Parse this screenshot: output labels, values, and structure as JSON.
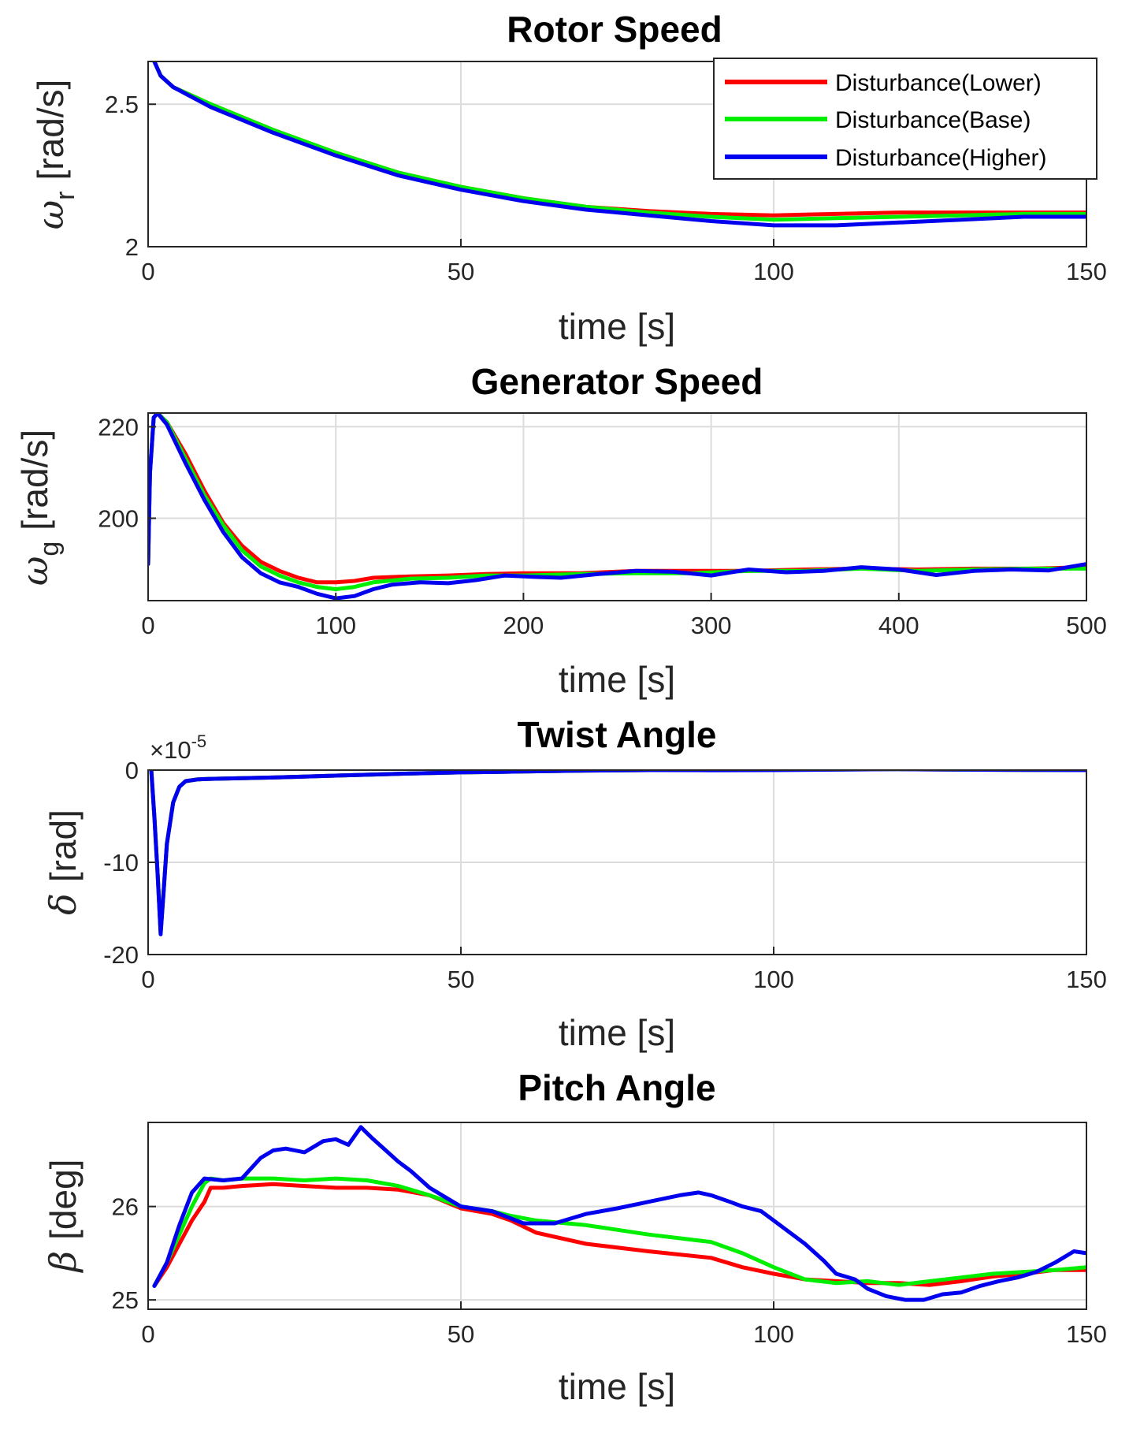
{
  "colors": {
    "lower": "#ff0000",
    "base": "#00ee00",
    "higher": "#0000ee"
  },
  "legend": [
    {
      "key": "lower",
      "label": "Disturbance(Lower)"
    },
    {
      "key": "base",
      "label": "Disturbance(Base)"
    },
    {
      "key": "higher",
      "label": "Disturbance(Higher)"
    }
  ],
  "chart_data": [
    {
      "type": "line",
      "title": "Rotor Speed",
      "xlabel": "time [s]",
      "ylabel": {
        "symbol": "ω",
        "sub": "r",
        "unit": "[rad/s]"
      },
      "xlim": [
        0,
        150
      ],
      "ylim": [
        2,
        2.65
      ],
      "xticks": [
        0,
        50,
        100,
        150
      ],
      "yticks": [
        2,
        2.5
      ],
      "xtick_labels": [
        "0",
        "50",
        "100",
        "150"
      ],
      "ytick_labels": [
        "2",
        "2.5"
      ],
      "series": [
        {
          "name": "Disturbance(Lower)",
          "key": "lower",
          "x": [
            1,
            2,
            4,
            10,
            20,
            30,
            40,
            50,
            60,
            70,
            80,
            90,
            100,
            110,
            120,
            130,
            140,
            150
          ],
          "y": [
            2.65,
            2.6,
            2.56,
            2.5,
            2.41,
            2.33,
            2.26,
            2.21,
            2.17,
            2.14,
            2.125,
            2.115,
            2.11,
            2.115,
            2.12,
            2.12,
            2.12,
            2.12
          ]
        },
        {
          "name": "Disturbance(Base)",
          "key": "base",
          "x": [
            1,
            2,
            4,
            10,
            20,
            30,
            40,
            50,
            60,
            70,
            80,
            90,
            100,
            110,
            120,
            130,
            140,
            150
          ],
          "y": [
            2.65,
            2.6,
            2.56,
            2.5,
            2.41,
            2.33,
            2.26,
            2.21,
            2.17,
            2.14,
            2.12,
            2.105,
            2.095,
            2.1,
            2.105,
            2.11,
            2.115,
            2.115
          ]
        },
        {
          "name": "Disturbance(Higher)",
          "key": "higher",
          "x": [
            1,
            2,
            4,
            10,
            20,
            30,
            40,
            50,
            60,
            70,
            80,
            90,
            100,
            110,
            120,
            130,
            140,
            150
          ],
          "y": [
            2.65,
            2.6,
            2.56,
            2.49,
            2.4,
            2.32,
            2.25,
            2.2,
            2.16,
            2.13,
            2.11,
            2.09,
            2.075,
            2.075,
            2.085,
            2.095,
            2.105,
            2.105
          ]
        }
      ],
      "legend_position": "top-right"
    },
    {
      "type": "line",
      "title": "Generator Speed",
      "xlabel": "time [s]",
      "ylabel": {
        "symbol": "ω",
        "sub": "g",
        "unit": "[rad/s]"
      },
      "xlim": [
        0,
        500
      ],
      "ylim": [
        182,
        223
      ],
      "xticks": [
        0,
        100,
        200,
        300,
        400,
        500
      ],
      "yticks": [
        200,
        220
      ],
      "xtick_labels": [
        "0",
        "100",
        "200",
        "300",
        "400",
        "500"
      ],
      "ytick_labels": [
        "200",
        "220"
      ],
      "series": [
        {
          "name": "Disturbance(Lower)",
          "key": "lower",
          "x": [
            0,
            1,
            3,
            5,
            10,
            20,
            30,
            40,
            50,
            60,
            70,
            80,
            90,
            100,
            110,
            120,
            140,
            160,
            180,
            200,
            230,
            260,
            290,
            320,
            350,
            380,
            410,
            440,
            470,
            500
          ],
          "y": [
            190,
            210,
            222,
            223,
            221,
            214,
            206,
            199,
            194,
            190.5,
            188.5,
            187,
            186,
            186,
            186.3,
            187,
            187.3,
            187.5,
            187.8,
            188,
            188,
            188.5,
            188.5,
            188.5,
            188.8,
            189,
            188.8,
            189,
            189,
            189.3
          ]
        },
        {
          "name": "Disturbance(Base)",
          "key": "base",
          "x": [
            0,
            1,
            3,
            5,
            10,
            20,
            30,
            40,
            50,
            60,
            70,
            80,
            90,
            100,
            110,
            120,
            140,
            160,
            180,
            200,
            230,
            260,
            290,
            320,
            350,
            380,
            410,
            440,
            470,
            500
          ],
          "y": [
            190,
            210,
            222,
            223,
            221,
            213,
            205,
            198.5,
            193,
            189.5,
            187.5,
            186,
            185,
            184.5,
            185,
            186,
            186.8,
            187,
            187.5,
            187.5,
            187.8,
            188,
            188,
            188.5,
            188.5,
            189,
            188.5,
            188.8,
            189,
            189
          ]
        },
        {
          "name": "Disturbance(Higher)",
          "key": "higher",
          "x": [
            0,
            1,
            3,
            5,
            10,
            20,
            30,
            40,
            50,
            60,
            70,
            80,
            90,
            100,
            110,
            120,
            130,
            145,
            160,
            175,
            190,
            205,
            220,
            240,
            260,
            280,
            300,
            320,
            340,
            360,
            380,
            400,
            420,
            440,
            460,
            480,
            500
          ],
          "y": [
            190,
            210,
            222,
            223,
            220.5,
            212,
            204,
            197,
            191.5,
            188,
            186,
            185,
            183.5,
            182.5,
            183,
            184.5,
            185.5,
            186,
            185.8,
            186.5,
            187.5,
            187.2,
            187,
            187.8,
            188.5,
            188.3,
            187.5,
            188.8,
            188.2,
            188.5,
            189.3,
            188.8,
            187.6,
            188.5,
            188.8,
            188.6,
            190
          ]
        }
      ]
    },
    {
      "type": "line",
      "title": "Twist Angle",
      "xlabel": "time [s]",
      "ylabel": {
        "symbol": "δ",
        "sub": "",
        "unit": "[rad]"
      },
      "exponent": "×10",
      "exponent_power": "-5",
      "xlim": [
        0,
        150
      ],
      "ylim": [
        -20,
        0
      ],
      "xticks": [
        0,
        50,
        100,
        150
      ],
      "yticks": [
        -20,
        -10,
        0
      ],
      "xtick_labels": [
        "0",
        "50",
        "100",
        "150"
      ],
      "ytick_labels": [
        "-20",
        "-10",
        "0"
      ],
      "series": [
        {
          "name": "Disturbance(Lower)",
          "key": "lower",
          "x": [
            0.5,
            1,
            1.5,
            2,
            2.5,
            3,
            4,
            5,
            6,
            8,
            10,
            20,
            30,
            40,
            50,
            60,
            70,
            80,
            90,
            100,
            110,
            120,
            130,
            140,
            150
          ],
          "y": [
            0,
            -5,
            -11,
            -17.5,
            -13,
            -8,
            -3.5,
            -1.8,
            -1.2,
            -1,
            -0.95,
            -0.8,
            -0.6,
            -0.4,
            -0.25,
            -0.15,
            -0.05,
            0,
            0.05,
            0.05,
            0.08,
            0.1,
            0.05,
            0.02,
            0
          ]
        },
        {
          "name": "Disturbance(Base)",
          "key": "base",
          "x": [
            0.5,
            1,
            1.5,
            2,
            2.5,
            3,
            4,
            5,
            6,
            8,
            10,
            20,
            30,
            40,
            50,
            60,
            70,
            80,
            90,
            100,
            110,
            120,
            130,
            140,
            150
          ],
          "y": [
            0,
            -5,
            -11,
            -17.6,
            -13,
            -8,
            -3.5,
            -1.8,
            -1.2,
            -1,
            -0.95,
            -0.8,
            -0.6,
            -0.4,
            -0.25,
            -0.15,
            -0.05,
            0,
            0.03,
            0.05,
            0.07,
            0.1,
            0.05,
            0.02,
            0
          ]
        },
        {
          "name": "Disturbance(Higher)",
          "key": "higher",
          "x": [
            0.5,
            1,
            1.5,
            2,
            2.5,
            3,
            4,
            5,
            6,
            8,
            10,
            20,
            30,
            40,
            50,
            60,
            70,
            80,
            90,
            100,
            110,
            120,
            130,
            140,
            150
          ],
          "y": [
            0,
            -5,
            -11,
            -17.8,
            -13,
            -8,
            -3.5,
            -1.8,
            -1.2,
            -1,
            -0.95,
            -0.8,
            -0.6,
            -0.4,
            -0.25,
            -0.15,
            -0.05,
            0,
            -0.02,
            0,
            0.05,
            0.1,
            0.05,
            0.02,
            0
          ]
        }
      ]
    },
    {
      "type": "line",
      "title": "Pitch Angle",
      "xlabel": "time [s]",
      "ylabel": {
        "symbol": "β",
        "sub": "",
        "unit": "[deg]"
      },
      "xlim": [
        0,
        150
      ],
      "ylim": [
        24.9,
        26.9
      ],
      "xticks": [
        0,
        50,
        100,
        150
      ],
      "yticks": [
        25,
        26
      ],
      "xtick_labels": [
        "0",
        "50",
        "100",
        "150"
      ],
      "ytick_labels": [
        "25",
        "26"
      ],
      "series": [
        {
          "name": "Disturbance(Lower)",
          "key": "lower",
          "x": [
            1,
            3,
            5,
            7,
            9,
            10,
            12,
            15,
            20,
            25,
            30,
            35,
            40,
            45,
            50,
            55,
            58,
            62,
            70,
            80,
            90,
            95,
            100,
            105,
            110,
            115,
            120,
            125,
            130,
            135,
            140,
            145,
            150
          ],
          "y": [
            25.15,
            25.35,
            25.6,
            25.85,
            26.05,
            26.2,
            26.2,
            26.22,
            26.24,
            26.22,
            26.2,
            26.2,
            26.18,
            26.12,
            25.98,
            25.92,
            25.85,
            25.72,
            25.6,
            25.52,
            25.45,
            25.35,
            25.28,
            25.22,
            25.2,
            25.18,
            25.18,
            25.16,
            25.2,
            25.25,
            25.28,
            25.32,
            25.32
          ]
        },
        {
          "name": "Disturbance(Base)",
          "key": "base",
          "x": [
            1,
            3,
            5,
            7,
            9,
            10,
            12,
            15,
            20,
            25,
            30,
            35,
            40,
            45,
            50,
            55,
            58,
            62,
            70,
            80,
            90,
            95,
            100,
            105,
            110,
            115,
            120,
            125,
            130,
            135,
            140,
            145,
            150
          ],
          "y": [
            25.15,
            25.4,
            25.7,
            26.0,
            26.25,
            26.3,
            26.28,
            26.3,
            26.3,
            26.28,
            26.3,
            26.28,
            26.22,
            26.12,
            26.0,
            25.95,
            25.9,
            25.85,
            25.8,
            25.7,
            25.62,
            25.5,
            25.35,
            25.22,
            25.18,
            25.2,
            25.16,
            25.2,
            25.24,
            25.28,
            25.3,
            25.32,
            25.35
          ]
        },
        {
          "name": "Disturbance(Higher)",
          "key": "higher",
          "x": [
            1,
            3,
            5,
            7,
            9,
            12,
            15,
            18,
            20,
            22,
            25,
            28,
            30,
            32,
            34,
            36,
            38,
            40,
            42,
            45,
            48,
            50,
            55,
            60,
            65,
            70,
            75,
            80,
            85,
            88,
            90,
            93,
            95,
            98,
            100,
            105,
            108,
            110,
            113,
            115,
            118,
            121,
            124,
            127,
            130,
            133,
            136,
            139,
            142,
            145,
            148,
            150
          ],
          "y": [
            25.15,
            25.4,
            25.8,
            26.15,
            26.3,
            26.28,
            26.3,
            26.52,
            26.6,
            26.62,
            26.58,
            26.7,
            26.72,
            26.66,
            26.85,
            26.72,
            26.6,
            26.48,
            26.38,
            26.2,
            26.08,
            26.0,
            25.95,
            25.82,
            25.82,
            25.92,
            25.98,
            26.05,
            26.12,
            26.15,
            26.12,
            26.05,
            26.0,
            25.95,
            25.85,
            25.6,
            25.42,
            25.28,
            25.22,
            25.12,
            25.04,
            25.0,
            25.0,
            25.06,
            25.08,
            25.15,
            25.2,
            25.24,
            25.3,
            25.4,
            25.52,
            25.5
          ]
        }
      ]
    }
  ]
}
